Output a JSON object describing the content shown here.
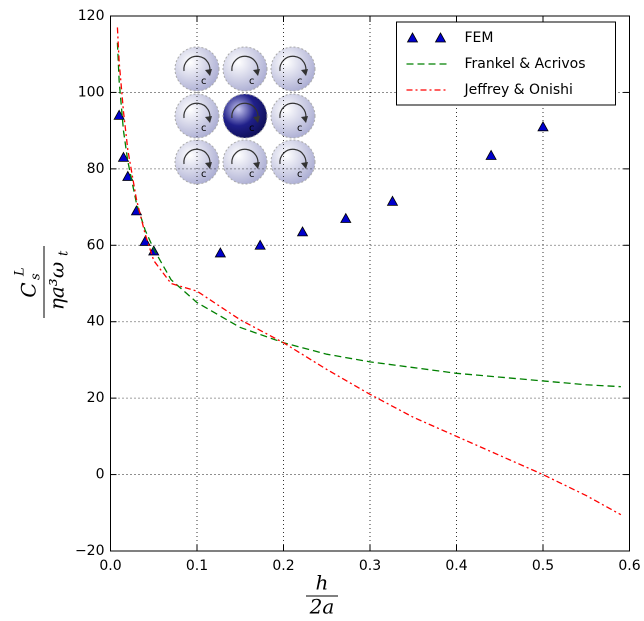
{
  "chart_data": {
    "type": "line",
    "xlabel": {
      "numerator": "h",
      "denominator": "2a"
    },
    "ylabel": {
      "numerator": "C",
      "numerator_sup": "L",
      "numerator_sub": "s",
      "denominator": "ηa³ω",
      "denominator_sub": "t"
    },
    "inset_label": "c",
    "xlim": [
      0,
      0.6
    ],
    "xticks": [
      {
        "value": 0,
        "label": "0.0"
      },
      0.1,
      0.2,
      0.3,
      0.4,
      0.5,
      0.6
    ],
    "ylim": [
      -20,
      120
    ],
    "yticks": [
      {
        "value": -20,
        "label": "−20"
      },
      0,
      20,
      40,
      60,
      80,
      100,
      120
    ],
    "grid": true,
    "legend": "upper right",
    "series": [
      {
        "name": "FEM",
        "color": "#0000cc",
        "style": "triangles",
        "x": [
          0.01,
          0.015,
          0.02,
          0.03,
          0.04,
          0.05,
          0.127,
          0.173,
          0.222,
          0.272,
          0.326,
          0.44,
          0.5
        ],
        "values": [
          94,
          83,
          78,
          69,
          61,
          58.5,
          58,
          60,
          63.5,
          67,
          71.5,
          83.5,
          91
        ]
      },
      {
        "name": "Frankel & Acrivos",
        "color": "#008000",
        "style": "dashed",
        "x": [
          0.008,
          0.01,
          0.015,
          0.02,
          0.03,
          0.04,
          0.05,
          0.07,
          0.1,
          0.15,
          0.2,
          0.25,
          0.3,
          0.35,
          0.4,
          0.45,
          0.5,
          0.55,
          0.59
        ],
        "values": [
          113,
          103,
          90,
          82,
          71,
          64,
          59,
          51,
          45,
          38.5,
          34.5,
          31.5,
          29.5,
          28,
          26.5,
          25.5,
          24.5,
          23.5,
          23
        ]
      },
      {
        "name": "Jeffrey & Onishi",
        "color": "#ff0000",
        "style": "dashdot",
        "x": [
          0.008,
          0.01,
          0.015,
          0.02,
          0.03,
          0.04,
          0.05,
          0.07,
          0.1,
          0.15,
          0.2,
          0.25,
          0.3,
          0.35,
          0.4,
          0.45,
          0.5,
          0.55,
          0.59
        ],
        "values": [
          117,
          108,
          95,
          85,
          72,
          63,
          56,
          50,
          48,
          40.5,
          34.5,
          27.5,
          21,
          15,
          10,
          5,
          0,
          -5.5,
          -10.5
        ]
      }
    ]
  }
}
